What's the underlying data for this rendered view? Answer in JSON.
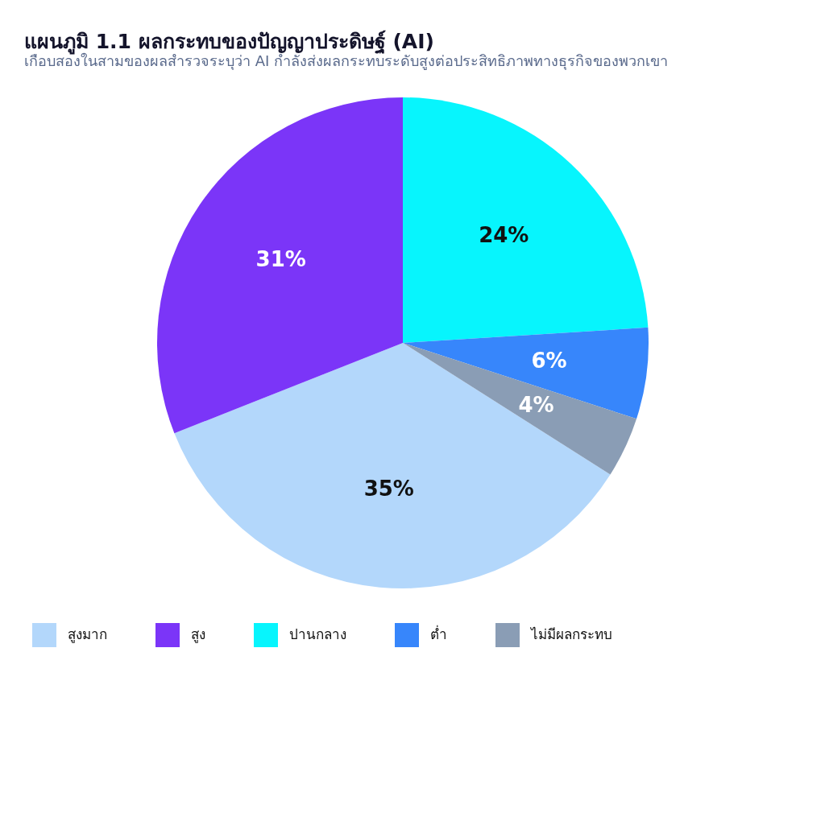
{
  "chart_data": {
    "type": "pie",
    "title": "แผนภูมิ 1.1 ผลกระทบของปัญญาประดิษฐ์ (AI)",
    "subtitle": "เกือบสองในสามของผลสำรวจระบุว่า AI กำลังส่งผลกระทบระดับสูงต่อประสิทธิภาพทางธุรกิจของพวกเขา",
    "categories": [
      "สูงมาก",
      "สูง",
      "ปานกลาง",
      "ต่ำ",
      "ไม่มีผลกระทบ"
    ],
    "values": [
      35,
      31,
      24,
      6,
      4
    ],
    "colors": [
      "#b3d7fb",
      "#7b35f8",
      "#07f5fd",
      "#3786fb",
      "#8a9db5"
    ],
    "value_labels": [
      "35%",
      "31%",
      "24%",
      "6%",
      "4%"
    ],
    "legend": "bottom"
  }
}
